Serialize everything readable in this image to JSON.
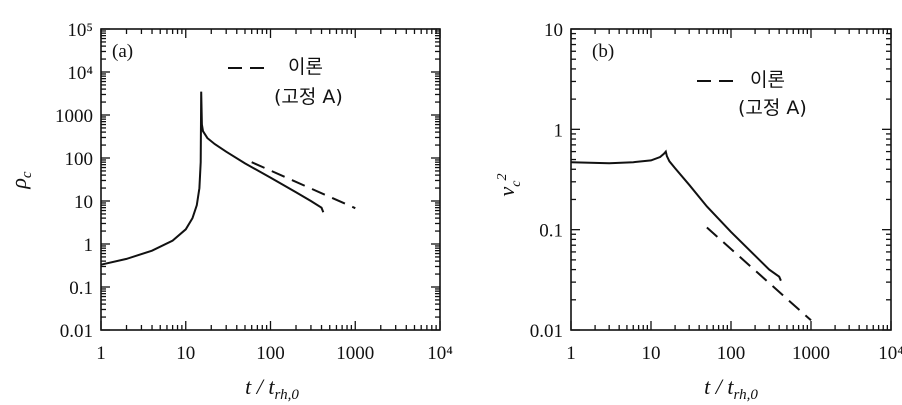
{
  "chart_data": [
    {
      "type": "line",
      "panel_label": "(a)",
      "ylabel": "ρc",
      "xlabel": "t / trh,0",
      "xscale": "log",
      "yscale": "log",
      "xlim": [
        1,
        10000
      ],
      "ylim": [
        0.01,
        100000
      ],
      "x_tick_labels": [
        "1",
        "10",
        "100",
        "1000",
        "10⁴"
      ],
      "y_tick_labels": [
        "0.01",
        "0.1",
        "1",
        "10",
        "100",
        "1000",
        "10⁴",
        "10⁵"
      ],
      "legend": {
        "line_style": "dashed",
        "label_line1": "이론",
        "label_line2": "(고정 A)",
        "placement": "top-right"
      },
      "series": [
        {
          "style": "solid",
          "x": [
            1,
            2,
            4,
            7,
            10,
            12,
            13.5,
            14.5,
            15,
            15.2,
            15.5,
            16,
            18,
            22,
            30,
            50,
            100,
            200,
            300,
            400,
            420
          ],
          "y": [
            0.33,
            0.45,
            0.7,
            1.2,
            2.2,
            4,
            8,
            20,
            80,
            3500,
            600,
            420,
            290,
            210,
            140,
            75,
            35,
            16,
            10,
            7,
            5.5
          ]
        },
        {
          "style": "dashed",
          "x": [
            60,
            1000
          ],
          "y": [
            80,
            6.8
          ]
        }
      ]
    },
    {
      "type": "line",
      "panel_label": "(b)",
      "ylabel": "vc²",
      "xlabel": "t / trh,0",
      "xscale": "log",
      "yscale": "log",
      "xlim": [
        1,
        10000
      ],
      "ylim": [
        0.01,
        10
      ],
      "x_tick_labels": [
        "1",
        "10",
        "100",
        "1000",
        "10⁴"
      ],
      "y_tick_labels": [
        "0.01",
        "0.1",
        "1",
        "10"
      ],
      "legend": {
        "line_style": "dashed",
        "label_line1": "이론",
        "label_line2": "(고정 A)",
        "placement": "top-right"
      },
      "series": [
        {
          "style": "solid",
          "x": [
            1,
            3,
            6,
            10,
            13,
            14.5,
            15.3,
            15.8,
            17,
            20,
            30,
            50,
            100,
            200,
            300,
            400,
            420
          ],
          "y": [
            0.47,
            0.46,
            0.47,
            0.49,
            0.53,
            0.57,
            0.6,
            0.54,
            0.48,
            0.41,
            0.28,
            0.17,
            0.095,
            0.055,
            0.04,
            0.034,
            0.031
          ]
        },
        {
          "style": "dashed",
          "x": [
            50,
            1000
          ],
          "y": [
            0.105,
            0.0125
          ]
        }
      ]
    }
  ]
}
